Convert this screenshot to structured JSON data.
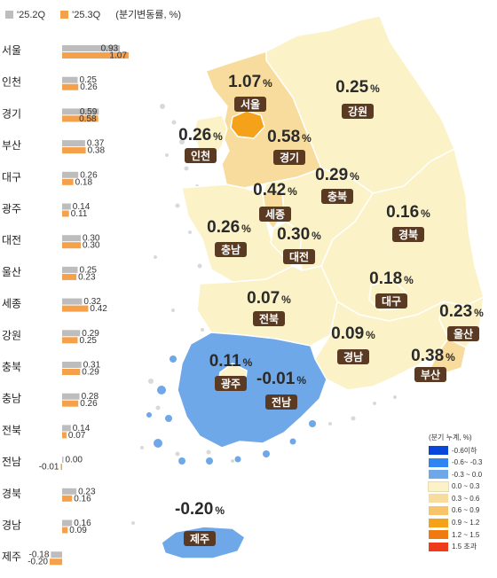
{
  "legend": {
    "series_a": "'25.2Q",
    "series_b": "'25.3Q",
    "unit": "(분기변동률, %)",
    "color_a": "#bdbdbd",
    "color_b": "#f5a04a"
  },
  "chart_data": {
    "type": "bar",
    "orientation": "horizontal",
    "categories": [
      "서울",
      "인천",
      "경기",
      "부산",
      "대구",
      "광주",
      "대전",
      "울산",
      "세종",
      "강원",
      "충북",
      "충남",
      "전북",
      "전남",
      "경북",
      "경남",
      "제주"
    ],
    "series": [
      {
        "name": "'25.2Q",
        "values": [
          0.93,
          0.25,
          0.59,
          0.37,
          0.26,
          0.14,
          0.3,
          0.25,
          0.32,
          0.29,
          0.31,
          0.28,
          0.14,
          0.0,
          0.23,
          0.16,
          -0.18
        ]
      },
      {
        "name": "'25.3Q",
        "values": [
          1.07,
          0.26,
          0.58,
          0.38,
          0.18,
          0.11,
          0.3,
          0.23,
          0.42,
          0.25,
          0.29,
          0.26,
          0.07,
          -0.01,
          0.16,
          0.09,
          -0.2
        ]
      }
    ],
    "value_labels_a": [
      "0.93",
      "0.25",
      "0.59",
      "0.37",
      "0.26",
      "0.14",
      "0.30",
      "0.25",
      "0.32",
      "0.29",
      "0.31",
      "0.28",
      "0.14",
      "0.00",
      "0.23",
      "0.16",
      "-0.18"
    ],
    "value_labels_b": [
      "1.07",
      "0.26",
      "0.58",
      "0.38",
      "0.18",
      "0.11",
      "0.30",
      "0.23",
      "0.42",
      "0.25",
      "0.29",
      "0.26",
      "0.07",
      "-0.01",
      "0.16",
      "0.09",
      "-0.20"
    ]
  },
  "map": {
    "regions": [
      {
        "name": "서울",
        "value": "1.07",
        "fill": "#f5a21b"
      },
      {
        "name": "인천",
        "value": "0.26",
        "fill": "#fbf2c7"
      },
      {
        "name": "경기",
        "value": "0.58",
        "fill": "#f8dc9d"
      },
      {
        "name": "강원",
        "value": "0.25",
        "fill": "#fbf2c7"
      },
      {
        "name": "충북",
        "value": "0.29",
        "fill": "#fbf2c7"
      },
      {
        "name": "세종",
        "value": "0.42",
        "fill": "#f8dc9d"
      },
      {
        "name": "충남",
        "value": "0.26",
        "fill": "#fbf2c7"
      },
      {
        "name": "대전",
        "value": "0.30",
        "fill": "#fbf2c7"
      },
      {
        "name": "경북",
        "value": "0.16",
        "fill": "#fbf2c7"
      },
      {
        "name": "대구",
        "value": "0.18",
        "fill": "#fbf2c7"
      },
      {
        "name": "전북",
        "value": "0.07",
        "fill": "#fbf2c7"
      },
      {
        "name": "울산",
        "value": "0.23",
        "fill": "#fbf2c7"
      },
      {
        "name": "경남",
        "value": "0.09",
        "fill": "#fbf2c7"
      },
      {
        "name": "부산",
        "value": "0.38",
        "fill": "#f8dc9d"
      },
      {
        "name": "광주",
        "value": "0.11",
        "fill": "#fbf2c7"
      },
      {
        "name": "전남",
        "value": "-0.01",
        "fill": "#6fa8e8"
      },
      {
        "name": "제주",
        "value": "-0.20",
        "fill": "#6fa8e8"
      }
    ],
    "percent_unit": "%",
    "tag_color": "#5a3a22"
  },
  "scale_legend": {
    "title": "(분기 누계, %)",
    "bins": [
      {
        "label": "-0.6이하",
        "color": "#0a46d8"
      },
      {
        "label": "-0.6~ -0.3",
        "color": "#2f86f0"
      },
      {
        "label": "-0.3 ~ 0.0",
        "color": "#6fa8e8"
      },
      {
        "label": "0.0 ~ 0.3",
        "color": "#fbf2c7"
      },
      {
        "label": "0.3 ~ 0.6",
        "color": "#f8dc9d"
      },
      {
        "label": "0.6 ~ 0.9",
        "color": "#f7c46a"
      },
      {
        "label": "0.9 ~ 1.2",
        "color": "#f5a21b"
      },
      {
        "label": "1.2 ~ 1.5",
        "color": "#f07a12"
      },
      {
        "label": "1.5 초과",
        "color": "#ef3b1c"
      }
    ]
  }
}
